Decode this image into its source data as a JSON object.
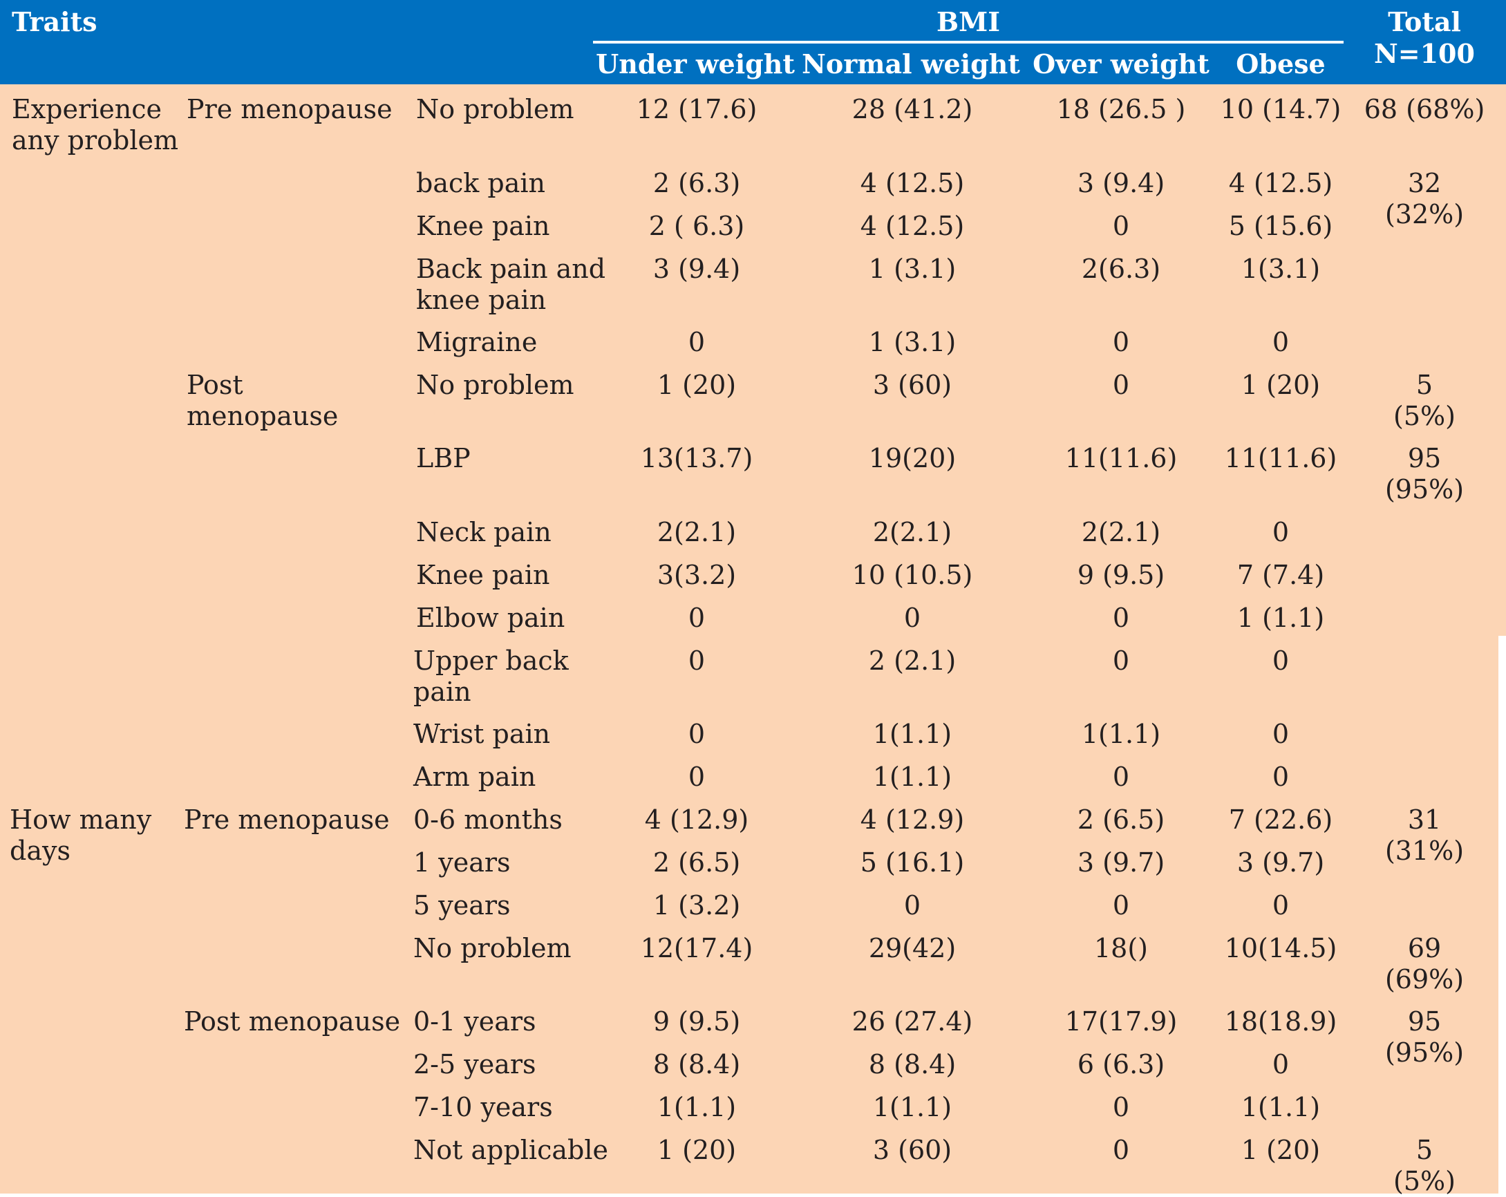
{
  "header": {
    "traits": "Traits",
    "bmi": "BMI",
    "columns": [
      "Under weight",
      "Normal weight",
      "Over weight",
      "Obese"
    ],
    "total_line1": "Total",
    "total_line2": "N=100"
  },
  "groups": [
    {
      "label_lines": [
        "Experience",
        "any problem"
      ]
    },
    {
      "label_lines": [
        "How many",
        "days"
      ]
    }
  ],
  "phases": [
    {
      "label_lines": [
        "Pre menopause"
      ]
    },
    {
      "label_lines": [
        "Post",
        "menopause"
      ]
    },
    {
      "label_lines": [
        "Pre menopause"
      ]
    },
    {
      "label_lines": [
        "Post menopause"
      ]
    }
  ],
  "rows": [
    {
      "label_lines": [
        "No problem"
      ],
      "values": [
        "12 (17.6)",
        "28 (41.2)",
        "18 (26.5 )",
        "10 (14.7)"
      ]
    },
    {
      "label_lines": [
        "back pain"
      ],
      "values": [
        "2 (6.3)",
        "4 (12.5)",
        "3 (9.4)",
        "4 (12.5)"
      ]
    },
    {
      "label_lines": [
        "Knee pain"
      ],
      "values": [
        "2 ( 6.3)",
        "4 (12.5)",
        "0",
        "5 (15.6)"
      ]
    },
    {
      "label_lines": [
        "Back pain and",
        "knee pain"
      ],
      "values": [
        "3 (9.4)",
        "1 (3.1)",
        "2(6.3)",
        "1(3.1)"
      ]
    },
    {
      "label_lines": [
        "Migraine"
      ],
      "values": [
        "0",
        "1 (3.1)",
        "0",
        "0"
      ]
    },
    {
      "label_lines": [
        "No problem"
      ],
      "values": [
        "1 (20)",
        "3 (60)",
        "0",
        "1 (20)"
      ]
    },
    {
      "label_lines": [
        "LBP"
      ],
      "values": [
        "13(13.7)",
        "19(20)",
        "11(11.6)",
        "11(11.6)"
      ]
    },
    {
      "label_lines": [
        "Neck pain"
      ],
      "values": [
        "2(2.1)",
        "2(2.1)",
        "2(2.1)",
        "0"
      ]
    },
    {
      "label_lines": [
        "Knee pain"
      ],
      "values": [
        "3(3.2)",
        "10 (10.5)",
        "9 (9.5)",
        "7 (7.4)"
      ]
    },
    {
      "label_lines": [
        "Elbow pain"
      ],
      "values": [
        "0",
        "0",
        "0",
        "1 (1.1)"
      ]
    },
    {
      "label_lines": [
        "Upper back",
        "pain"
      ],
      "values": [
        "0",
        "2 (2.1)",
        "0",
        "0"
      ]
    },
    {
      "label_lines": [
        "Wrist pain"
      ],
      "values": [
        "0",
        "1(1.1)",
        "1(1.1)",
        "0"
      ]
    },
    {
      "label_lines": [
        "Arm pain"
      ],
      "values": [
        "0",
        "1(1.1)",
        "0",
        "0"
      ]
    },
    {
      "label_lines": [
        "0-6 months"
      ],
      "values": [
        "4 (12.9)",
        "4 (12.9)",
        "2 (6.5)",
        "7 (22.6)"
      ]
    },
    {
      "label_lines": [
        "1 years"
      ],
      "values": [
        "2 (6.5)",
        "5 (16.1)",
        "3 (9.7)",
        "3 (9.7)"
      ]
    },
    {
      "label_lines": [
        "5 years"
      ],
      "values": [
        "1 (3.2)",
        "0",
        "0",
        "0"
      ]
    },
    {
      "label_lines": [
        "No problem"
      ],
      "values": [
        "12(17.4)",
        "29(42)",
        "18()",
        "10(14.5)"
      ]
    },
    {
      "label_lines": [
        "0-1 years"
      ],
      "values": [
        "9 (9.5)",
        "26 (27.4)",
        "17(17.9)",
        "18(18.9)"
      ]
    },
    {
      "label_lines": [
        "2-5 years"
      ],
      "values": [
        "8 (8.4)",
        "8 (8.4)",
        "6 (6.3)",
        "0"
      ]
    },
    {
      "label_lines": [
        "7-10 years"
      ],
      "values": [
        "1(1.1)",
        "1(1.1)",
        "0",
        "1(1.1)"
      ]
    },
    {
      "label_lines": [
        "Not applicable"
      ],
      "values": [
        "1 (20)",
        "3 (60)",
        "0",
        "1 (20)"
      ]
    }
  ],
  "totals": [
    {
      "lines": [
        "68 (68%)"
      ]
    },
    {
      "lines": [
        "32",
        "(32%)"
      ]
    },
    {
      "lines": [
        "5",
        "(5%)"
      ]
    },
    {
      "lines": [
        "95",
        "(95%)"
      ]
    },
    {
      "lines": [
        "31",
        "(31%)"
      ]
    },
    {
      "lines": [
        "69",
        "(69%)"
      ]
    },
    {
      "lines": [
        "95",
        "(95%)"
      ]
    },
    {
      "lines": [
        "5",
        "(5%)"
      ]
    }
  ],
  "colors": {
    "header_bg": "#0070c0",
    "header_text": "#ffffff",
    "body_bg": "#fcd5b5",
    "text": "#231f20"
  }
}
